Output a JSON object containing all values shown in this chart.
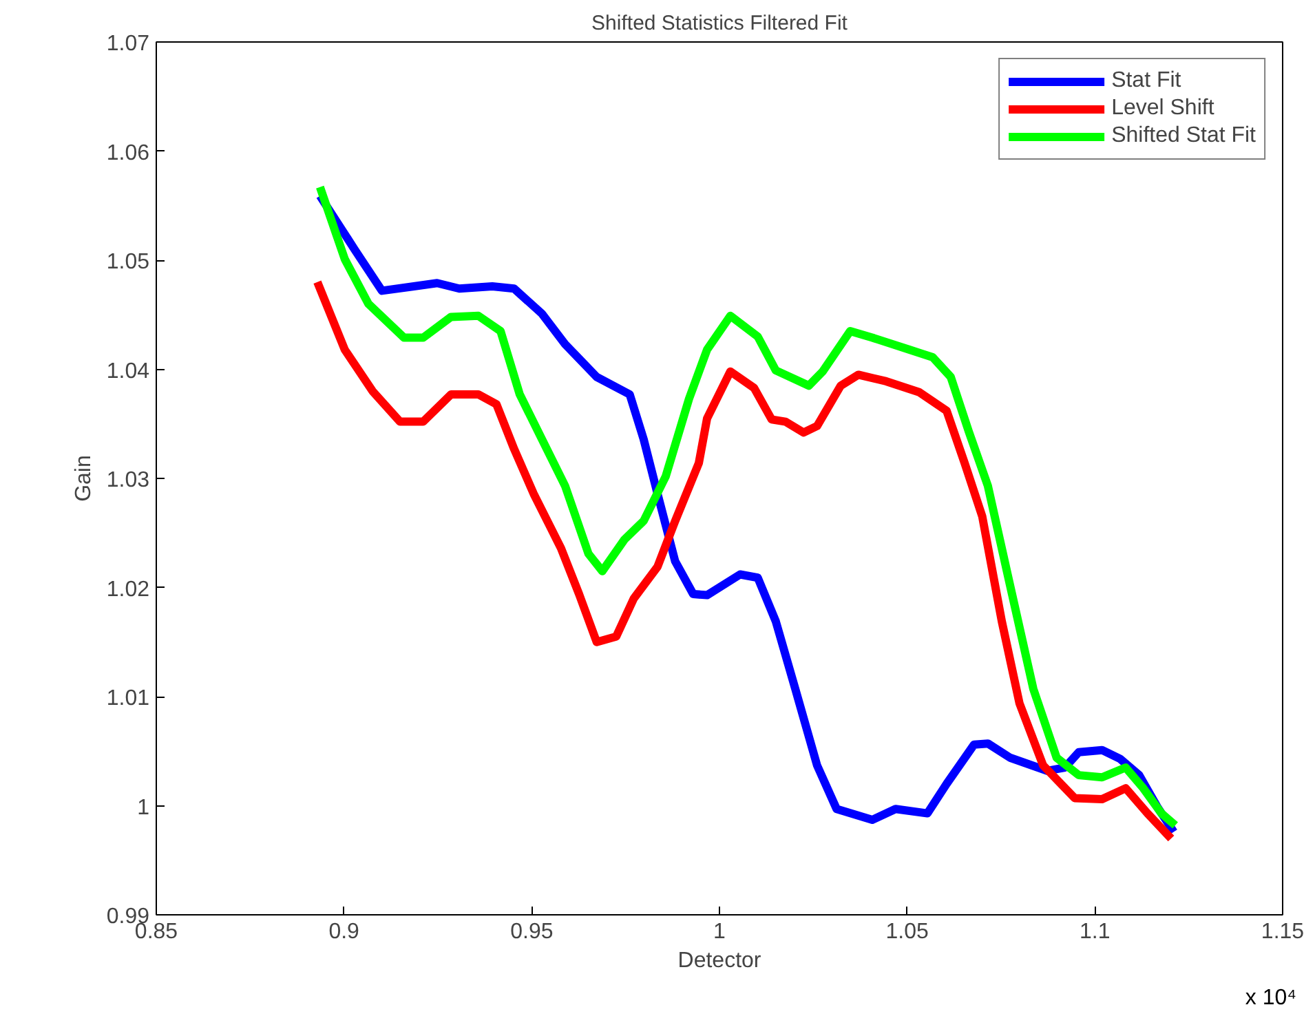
{
  "chart_data": {
    "type": "line",
    "title": "Shifted Statistics Filtered Fit",
    "xlabel": "Detector",
    "ylabel": "Gain",
    "annotations": [
      "x 10⁴"
    ],
    "xlim": [
      0.85,
      1.15
    ],
    "xticks": [
      0.85,
      0.9,
      0.95,
      1,
      1.05,
      1.1,
      1.15
    ],
    "ylim": [
      0.99,
      1.07
    ],
    "yticks": [
      0.99,
      1,
      1.01,
      1.02,
      1.03,
      1.04,
      1.05,
      1.06,
      1.07
    ],
    "grid": false,
    "legend": "top right",
    "marker": "none",
    "line_style": "solid",
    "series": [
      {
        "name": "Stat Fit",
        "color": "#0000ff",
        "x": [
          0.8936,
          0.9028,
          0.9101,
          0.9186,
          0.9248,
          0.9307,
          0.9395,
          0.9453,
          0.9527,
          0.9589,
          0.9673,
          0.9761,
          0.9798,
          0.9835,
          0.9882,
          0.993,
          0.9967,
          1.0055,
          1.0102,
          1.015,
          1.0202,
          1.026,
          1.0312,
          1.0407,
          1.0469,
          1.0554,
          1.0605,
          1.0678,
          1.0715,
          1.0774,
          1.0873,
          1.092,
          1.0957,
          1.1019,
          1.1067,
          1.1118,
          1.1166,
          1.121
        ],
        "values": [
          1.0559,
          1.051,
          1.0472,
          1.0476,
          1.0479,
          1.0474,
          1.0476,
          1.0474,
          1.0451,
          1.0423,
          1.0393,
          1.0377,
          1.0336,
          1.0286,
          1.0224,
          1.0194,
          1.0193,
          1.0212,
          1.0209,
          1.0169,
          1.0107,
          1.0037,
          0.9997,
          0.9987,
          0.9997,
          0.9993,
          1.002,
          1.0056,
          1.0057,
          1.0044,
          1.0032,
          1.0035,
          1.0049,
          1.0051,
          1.0043,
          1.0028,
          0.9999,
          0.9976
        ]
      },
      {
        "name": "Level Shift",
        "color": "#ff0000",
        "x": [
          0.8929,
          0.9002,
          0.9076,
          0.9149,
          0.9211,
          0.9285,
          0.9358,
          0.9406,
          0.9453,
          0.9505,
          0.9578,
          0.9626,
          0.9673,
          0.9725,
          0.9772,
          0.9835,
          0.9882,
          0.9945,
          0.9967,
          1.0029,
          1.0092,
          1.0139,
          1.0176,
          1.0224,
          1.026,
          1.0323,
          1.037,
          1.0444,
          1.0532,
          1.0605,
          1.0653,
          1.07,
          1.0752,
          1.0799,
          1.0862,
          1.0946,
          1.1019,
          1.1082,
          1.114,
          1.1203
        ],
        "values": [
          1.048,
          1.0418,
          1.038,
          1.0352,
          1.0352,
          1.0377,
          1.0377,
          1.0368,
          1.0327,
          1.0286,
          1.0236,
          1.0194,
          1.015,
          1.0155,
          1.019,
          1.0219,
          1.0261,
          1.0314,
          1.0355,
          1.0398,
          1.0383,
          1.0354,
          1.0352,
          1.0342,
          1.0348,
          1.0385,
          1.0395,
          1.0389,
          1.0379,
          1.0362,
          1.0314,
          1.0265,
          1.0169,
          1.0094,
          1.0037,
          1.0007,
          1.0006,
          1.0016,
          0.9993,
          0.997
        ]
      },
      {
        "name": "Shifted Stat Fit",
        "color": "#00ff00",
        "x": [
          0.8936,
          0.9002,
          0.9065,
          0.916,
          0.9211,
          0.9285,
          0.9358,
          0.9417,
          0.9468,
          0.9527,
          0.9589,
          0.9651,
          0.9688,
          0.9747,
          0.9798,
          0.9857,
          0.9919,
          0.9967,
          1.0029,
          1.0102,
          1.015,
          1.0238,
          1.0275,
          1.0348,
          1.0407,
          1.0506,
          1.0568,
          1.0616,
          1.0664,
          1.0715,
          1.0774,
          1.0836,
          1.0898,
          1.0957,
          1.1019,
          1.1082,
          1.1129,
          1.1177,
          1.1214
        ],
        "values": [
          1.0567,
          1.0501,
          1.046,
          1.0429,
          1.0429,
          1.0448,
          1.0449,
          1.0435,
          1.0377,
          1.0336,
          1.0293,
          1.0231,
          1.0215,
          1.0244,
          1.0261,
          1.0302,
          1.0373,
          1.0418,
          1.0449,
          1.043,
          1.0399,
          1.0385,
          1.0398,
          1.0435,
          1.0429,
          1.0418,
          1.0411,
          1.0393,
          1.0343,
          1.0293,
          1.0202,
          1.0107,
          1.0044,
          1.0028,
          1.0026,
          1.0035,
          1.0016,
          0.9993,
          0.9982
        ]
      }
    ]
  }
}
